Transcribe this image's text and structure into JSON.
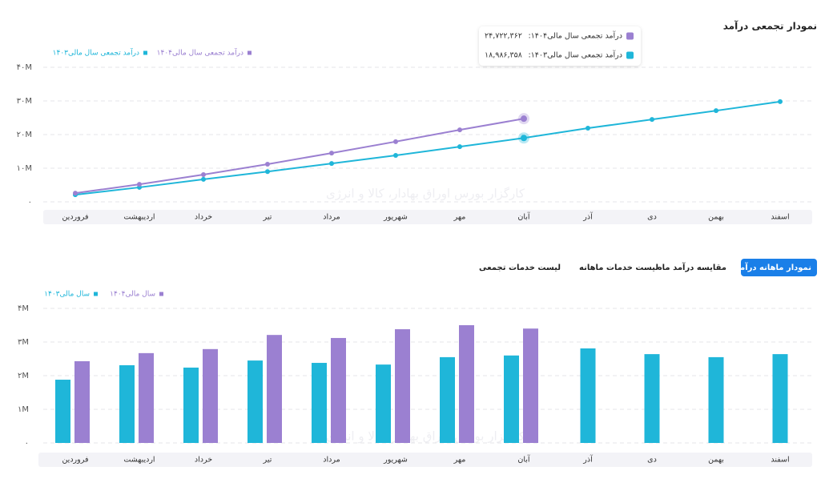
{
  "chart_data": [
    {
      "type": "line",
      "title": "نمودار تجمعی درآمد",
      "categories": [
        "فروردین",
        "اردیبهشت",
        "خرداد",
        "تیر",
        "مرداد",
        "شهریور",
        "مهر",
        "آبان",
        "آذر",
        "دی",
        "بهمن",
        "اسفند"
      ],
      "series": [
        {
          "name": "درآمد تجمعی سال مالی۱۴۰۳",
          "color": "#1fb6d9",
          "values": [
            2100000,
            4300000,
            6700000,
            9000000,
            11400000,
            13800000,
            16400000,
            18986358,
            21900000,
            24500000,
            27100000,
            29800000
          ]
        },
        {
          "name": "درآمد تجمعی سال مالی۱۴۰۴",
          "color": "#9b80d1",
          "values": [
            2600000,
            5200000,
            8100000,
            11200000,
            14500000,
            17900000,
            21400000,
            24722362,
            null,
            null,
            null,
            null
          ]
        }
      ],
      "ylim": [
        0,
        40000000
      ],
      "yticks": [
        {
          "value": 0,
          "label": "۰"
        },
        {
          "value": 10000000,
          "label": "۱۰M"
        },
        {
          "value": 20000000,
          "label": "۲۰M"
        },
        {
          "value": 30000000,
          "label": "۳۰M"
        },
        {
          "value": 40000000,
          "label": "۴۰M"
        }
      ],
      "grid": true,
      "legend": "top-left",
      "tooltip": [
        {
          "text": "درآمد تجمعی سال مالی۱۴۰۴:",
          "label": "۲۴,۷۲۲,۳۶۲",
          "color": "#9b80d1"
        },
        {
          "text": "درآمد تجمعی سال مالی۱۴۰۳:",
          "label": "۱۸,۹۸۶,۳۵۸",
          "color": "#1fb6d9"
        }
      ]
    },
    {
      "type": "bar",
      "categories": [
        "فروردین",
        "اردیبهشت",
        "خرداد",
        "تیر",
        "مرداد",
        "شهریور",
        "مهر",
        "آبان",
        "آذر",
        "دی",
        "بهمن",
        "اسفند"
      ],
      "series": [
        {
          "name": "سال مالی۱۴۰۳",
          "color": "#1fb6d9",
          "values": [
            1880000,
            2310000,
            2240000,
            2450000,
            2380000,
            2330000,
            2550000,
            2600000,
            2810000,
            2640000,
            2550000,
            2640000
          ]
        },
        {
          "name": "سال مالی۱۴۰۴",
          "color": "#9b80d1",
          "values": [
            2430000,
            2670000,
            2790000,
            3210000,
            3120000,
            3380000,
            3500000,
            3400000,
            null,
            null,
            null,
            null
          ]
        }
      ],
      "ylim": [
        0,
        4000000
      ],
      "yticks": [
        {
          "value": 0,
          "label": "۰"
        },
        {
          "value": 1000000,
          "label": "۱M"
        },
        {
          "value": 2000000,
          "label": "۲M"
        },
        {
          "value": 3000000,
          "label": "۳M"
        },
        {
          "value": 4000000,
          "label": "۴M"
        }
      ],
      "grid": true,
      "legend": "top-left"
    }
  ],
  "tabs": {
    "items": [
      "نمودار ماهانه درآمد",
      "مقایسه درآمد ماه",
      "لیست خدمات ماهانه",
      "لیست خدمات تجمعی"
    ],
    "active": 0
  },
  "watermark": "کارگزار بورس اوراق بهادار، کالا و انرژی"
}
